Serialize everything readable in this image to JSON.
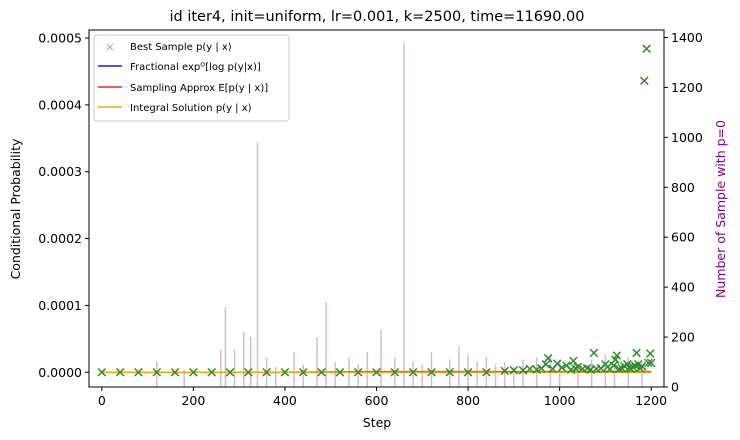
{
  "chart_data": {
    "type": "scatter",
    "title": "id iter4, init=uniform, lr=0.001, k=2500, time=11690.00",
    "xlabel": "Step",
    "ylabel": "Conditional Probability",
    "ylabel_right": "Number of Sample with p=0",
    "xlim": [
      -28,
      1228
    ],
    "ylim": [
      -2.2e-05,
      0.000512
    ],
    "ylim_right": [
      0,
      1430
    ],
    "x_ticks": [
      0,
      200,
      400,
      600,
      800,
      1000,
      1200
    ],
    "y_ticks": [
      0.0,
      0.0001,
      0.0002,
      0.0003,
      0.0004,
      0.0005
    ],
    "y_tick_labels": [
      "0.0000",
      "0.0001",
      "0.0002",
      "0.0003",
      "0.0004",
      "0.0005"
    ],
    "y_ticks_right": [
      0,
      200,
      400,
      600,
      800,
      1000,
      1200,
      1400
    ],
    "grid": false,
    "legend_position": "top-left",
    "legend": [
      {
        "label": "Best Sample p(y | x)",
        "marker": "x",
        "color": "#2ca02c"
      },
      {
        "label": "Fractional expᴼ[log p(y|x)]",
        "marker": "line",
        "color": "#1f1fcf"
      },
      {
        "label": "Sampling Approx E[p(y | x)]",
        "marker": "line",
        "color": "#e8231b"
      },
      {
        "label": "Integral Solution p(y | x)",
        "marker": "line",
        "color": "#f5a800"
      }
    ],
    "colors": {
      "best_sample": "#2e8b2e",
      "fractional": "#1f1fcf",
      "sampling": "#e8231b",
      "integral": "#f5a800",
      "zero_count": "#c9a6d8",
      "right_axis_label": "#800080"
    },
    "series": [
      {
        "name": "Best Sample p(y | x)",
        "type": "scatter",
        "points": [
          [
            0,
            0.0
          ],
          [
            40,
            0.0
          ],
          [
            80,
            0.0
          ],
          [
            120,
            0.0
          ],
          [
            160,
            0.0
          ],
          [
            200,
            0.0
          ],
          [
            240,
            0.0
          ],
          [
            280,
            0.0
          ],
          [
            320,
            0.0
          ],
          [
            360,
            0.0
          ],
          [
            400,
            0.0
          ],
          [
            440,
            0.0
          ],
          [
            480,
            0.0
          ],
          [
            520,
            0.0
          ],
          [
            560,
            0.0
          ],
          [
            600,
            0.0
          ],
          [
            640,
            0.0
          ],
          [
            680,
            0.0
          ],
          [
            720,
            0.0
          ],
          [
            760,
            0.0
          ],
          [
            800,
            0.0
          ],
          [
            840,
            0.0
          ],
          [
            880,
            2e-06
          ],
          [
            900,
            3e-06
          ],
          [
            920,
            3e-06
          ],
          [
            935,
            5e-06
          ],
          [
            950,
            4e-06
          ],
          [
            960,
            6e-06
          ],
          [
            970,
            1.2e-05
          ],
          [
            975,
            2.1e-05
          ],
          [
            985,
            5e-06
          ],
          [
            995,
            1.3e-05
          ],
          [
            1005,
            7e-06
          ],
          [
            1015,
            1e-05
          ],
          [
            1025,
            4e-06
          ],
          [
            1030,
            1.7e-05
          ],
          [
            1035,
            6e-06
          ],
          [
            1040,
            8e-06
          ],
          [
            1050,
            5e-06
          ],
          [
            1060,
            6e-06
          ],
          [
            1068,
            4e-06
          ],
          [
            1075,
            2.9e-05
          ],
          [
            1080,
            5e-06
          ],
          [
            1090,
            6e-06
          ],
          [
            1100,
            1.2e-05
          ],
          [
            1105,
            8e-06
          ],
          [
            1110,
            5e-06
          ],
          [
            1118,
            1e-05
          ],
          [
            1122,
            1.9e-05
          ],
          [
            1125,
            2.5e-05
          ],
          [
            1130,
            5e-06
          ],
          [
            1136,
            6e-06
          ],
          [
            1142,
            9e-06
          ],
          [
            1148,
            1.2e-05
          ],
          [
            1152,
            7e-06
          ],
          [
            1156,
            5e-06
          ],
          [
            1160,
            8e-06
          ],
          [
            1165,
            1e-05
          ],
          [
            1168,
            2.9e-05
          ],
          [
            1172,
            1.2e-05
          ],
          [
            1176,
            6e-06
          ],
          [
            1180,
            9e-06
          ],
          [
            1185,
            0.000436
          ],
          [
            1190,
            0.000484
          ],
          [
            1194,
            1.4e-05
          ],
          [
            1198,
            2.8e-05
          ],
          [
            1200,
            1.4e-05
          ]
        ]
      },
      {
        "name": "Fractional expᴼ[log p(y|x)]",
        "type": "line",
        "x": [
          0,
          200,
          400,
          600,
          800,
          1000,
          1200
        ],
        "values": [
          0,
          0,
          0,
          0,
          0,
          0,
          0
        ]
      },
      {
        "name": "Sampling Approx E[p(y | x)]",
        "type": "line",
        "x": [
          0,
          200,
          400,
          600,
          800,
          1000,
          1200
        ],
        "values": [
          0,
          0,
          0,
          1e-06,
          1e-06,
          1e-06,
          1e-06
        ]
      },
      {
        "name": "Integral Solution p(y | x)",
        "type": "line",
        "x": [
          0,
          200,
          400,
          600,
          800,
          1000,
          1200
        ],
        "values": [
          0,
          0,
          0,
          0,
          0,
          0,
          0
        ]
      },
      {
        "name": "Number of Sample with p=0",
        "type": "bar",
        "axis": "right",
        "spikes": [
          [
            120,
            100
          ],
          [
            180,
            70
          ],
          [
            260,
            150
          ],
          [
            270,
            320
          ],
          [
            290,
            150
          ],
          [
            310,
            220
          ],
          [
            325,
            200
          ],
          [
            340,
            980
          ],
          [
            360,
            120
          ],
          [
            380,
            80
          ],
          [
            420,
            140
          ],
          [
            440,
            90
          ],
          [
            470,
            200
          ],
          [
            490,
            340
          ],
          [
            510,
            100
          ],
          [
            540,
            120
          ],
          [
            560,
            90
          ],
          [
            580,
            140
          ],
          [
            610,
            230
          ],
          [
            640,
            120
          ],
          [
            660,
            1380
          ],
          [
            680,
            100
          ],
          [
            700,
            90
          ],
          [
            720,
            140
          ],
          [
            760,
            110
          ],
          [
            780,
            160
          ],
          [
            800,
            130
          ],
          [
            820,
            100
          ],
          [
            840,
            120
          ],
          [
            860,
            90
          ],
          [
            880,
            100
          ],
          [
            900,
            80
          ],
          [
            920,
            110
          ],
          [
            950,
            120
          ],
          [
            980,
            120
          ],
          [
            1000,
            100
          ],
          [
            1040,
            90
          ],
          [
            1070,
            110
          ],
          [
            1100,
            130
          ],
          [
            1120,
            80
          ],
          [
            1150,
            120
          ],
          [
            1180,
            90
          ]
        ]
      }
    ]
  }
}
